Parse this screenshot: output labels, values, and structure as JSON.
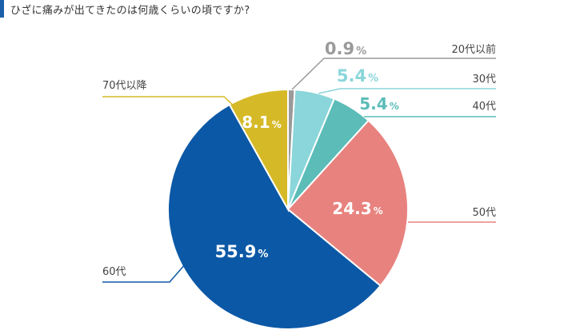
{
  "title": "ひざに痛みが出てきたのは何歳くらいの頃ですか?",
  "chart_data": {
    "type": "pie",
    "title": "ひざに痛みが出てきたのは何歳くらいの頃ですか?",
    "unit": "%",
    "categories": [
      "20代以前",
      "30代",
      "40代",
      "50代",
      "60代",
      "70代以降"
    ],
    "values": [
      0.9,
      5.4,
      5.4,
      24.3,
      55.9,
      8.1
    ],
    "colors": [
      "#9a9a9a",
      "#8ad6da",
      "#5bbcb8",
      "#e8827e",
      "#0b58a6",
      "#d6b927"
    ],
    "start": "12 o'clock",
    "direction": "clockwise"
  }
}
